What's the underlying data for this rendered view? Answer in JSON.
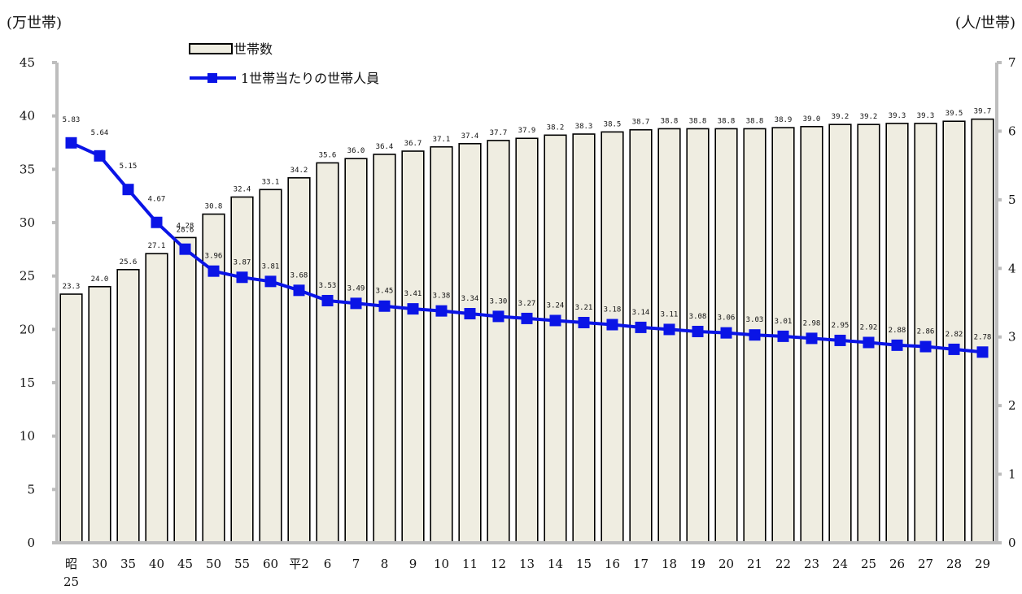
{
  "chart_data": {
    "type": "bar",
    "left_unit": "(万世帯)",
    "right_unit": "(人/世帯)",
    "categories": [
      "昭25",
      "30",
      "35",
      "40",
      "45",
      "50",
      "55",
      "60",
      "平2",
      "6",
      "7",
      "8",
      "9",
      "10",
      "11",
      "12",
      "13",
      "14",
      "15",
      "16",
      "17",
      "18",
      "19",
      "20",
      "21",
      "22",
      "23",
      "24",
      "25",
      "26",
      "27",
      "28",
      "29"
    ],
    "category_lines": [
      [
        "昭",
        "25"
      ],
      [
        "30"
      ],
      [
        "35"
      ],
      [
        "40"
      ],
      [
        "45"
      ],
      [
        "50"
      ],
      [
        "55"
      ],
      [
        "60"
      ],
      [
        "平2"
      ],
      [
        "6"
      ],
      [
        "7"
      ],
      [
        "8"
      ],
      [
        "9"
      ],
      [
        "10"
      ],
      [
        "11"
      ],
      [
        "12"
      ],
      [
        "13"
      ],
      [
        "14"
      ],
      [
        "15"
      ],
      [
        "16"
      ],
      [
        "17"
      ],
      [
        "18"
      ],
      [
        "19"
      ],
      [
        "20"
      ],
      [
        "21"
      ],
      [
        "22"
      ],
      [
        "23"
      ],
      [
        "24"
      ],
      [
        "25"
      ],
      [
        "26"
      ],
      [
        "27"
      ],
      [
        "28"
      ],
      [
        "29"
      ]
    ],
    "y_left": {
      "min": 0,
      "max": 45,
      "ticks": [
        0,
        5,
        10,
        15,
        20,
        25,
        30,
        35,
        40,
        45
      ]
    },
    "y_right": {
      "min": 0,
      "max": 7,
      "ticks": [
        0,
        1,
        2,
        3,
        4,
        5,
        6,
        7
      ]
    },
    "legend_position": "top-left",
    "series": [
      {
        "name": "世帯数",
        "type": "bar",
        "axis": "left",
        "color": "#efede1",
        "values": [
          23.3,
          24.0,
          25.6,
          27.1,
          28.6,
          30.8,
          32.4,
          33.1,
          34.2,
          35.6,
          36.0,
          36.4,
          36.7,
          37.1,
          37.4,
          37.7,
          37.9,
          38.2,
          38.3,
          38.5,
          38.7,
          38.8,
          38.8,
          38.8,
          38.8,
          38.9,
          39.0,
          39.2,
          39.2,
          39.3,
          39.3,
          39.5,
          39.7
        ],
        "labels": [
          "23.3",
          "24.0",
          "25.6",
          "27.1",
          "28.6",
          "30.8",
          "32.4",
          "33.1",
          "34.2",
          "35.6",
          "36.0",
          "36.4",
          "36.7",
          "37.1",
          "37.4",
          "37.7",
          "37.9",
          "38.2",
          "38.3",
          "38.5",
          "38.7",
          "38.8",
          "38.8",
          "38.8",
          "38.8",
          "38.9",
          "39.0",
          "39.2",
          "39.2",
          "39.3",
          "39.3",
          "39.5",
          "39.7"
        ]
      },
      {
        "name": "1世帯当たりの世帯人員",
        "type": "line",
        "axis": "right",
        "color": "#0a14e6",
        "values": [
          5.83,
          5.64,
          5.15,
          4.67,
          4.28,
          3.96,
          3.87,
          3.81,
          3.68,
          3.53,
          3.49,
          3.45,
          3.41,
          3.38,
          3.34,
          3.3,
          3.27,
          3.24,
          3.21,
          3.18,
          3.14,
          3.11,
          3.08,
          3.06,
          3.03,
          3.01,
          2.98,
          2.95,
          2.92,
          2.88,
          2.86,
          2.82,
          2.78
        ],
        "labels": [
          "5.83",
          "5.64",
          "5.15",
          "4.67",
          "4.28",
          "3.96",
          "3.87",
          "3.81",
          "3.68",
          "3.53",
          "3.49",
          "3.45",
          "3.41",
          "3.38",
          "3.34",
          "3.30",
          "3.27",
          "3.24",
          "3.21",
          "3.18",
          "3.14",
          "3.11",
          "3.08",
          "3.06",
          "3.03",
          "3.01",
          "2.98",
          "2.95",
          "2.92",
          "2.88",
          "2.86",
          "2.82",
          "2.78"
        ]
      }
    ]
  }
}
